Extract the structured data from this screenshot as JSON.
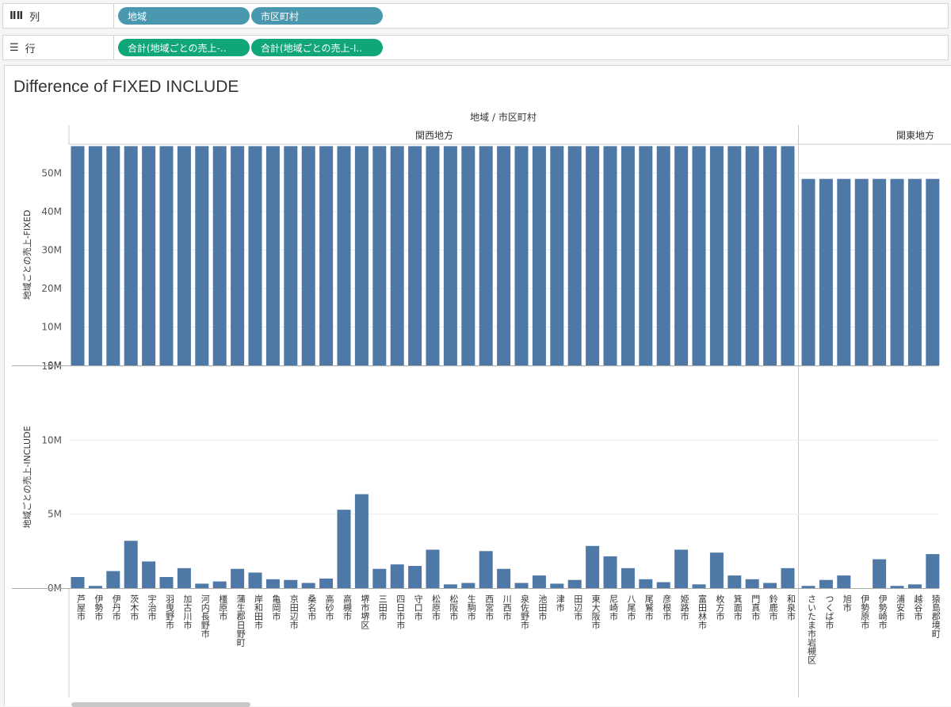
{
  "shelves": {
    "columns": {
      "label": "列",
      "icon": "columns-icon",
      "pills": [
        "地域",
        "市区町村"
      ]
    },
    "rows": {
      "label": "行",
      "icon": "rows-icon",
      "pills": [
        "合計(地域ごとの売上-..",
        "合計(地域ごとの売上-I.."
      ]
    }
  },
  "colors": {
    "bar": "#4e79a7",
    "dimension_pill": "#4a98b0",
    "measure_pill": "#11a679"
  },
  "chart_data": {
    "type": "bar",
    "title": "Difference of FIXED INCLUDE",
    "header_title": "地域 / 市区町村",
    "groups": [
      {
        "name": "関西地方",
        "categories": [
          "芦屋市",
          "伊勢市",
          "伊丹市",
          "茨木市",
          "宇治市",
          "羽曳野市",
          "加古川市",
          "河内長野市",
          "橿原市",
          "蒲生郡日野町",
          "岸和田市",
          "亀岡市",
          "京田辺市",
          "桑名市",
          "高砂市",
          "高槻市",
          "堺市堺区",
          "三田市",
          "四日市市",
          "守口市",
          "松原市",
          "松阪市",
          "生駒市",
          "西宮市",
          "川西市",
          "泉佐野市",
          "池田市",
          "津市",
          "田辺市",
          "東大阪市",
          "尼崎市",
          "八尾市",
          "尾鷲市",
          "彦根市",
          "姫路市",
          "富田林市",
          "枚方市",
          "箕面市",
          "門真市",
          "鈴鹿市",
          "和泉市"
        ],
        "fixed": [
          57,
          57,
          57,
          57,
          57,
          57,
          57,
          57,
          57,
          57,
          57,
          57,
          57,
          57,
          57,
          57,
          57,
          57,
          57,
          57,
          57,
          57,
          57,
          57,
          57,
          57,
          57,
          57,
          57,
          57,
          57,
          57,
          57,
          57,
          57,
          57,
          57,
          57,
          57,
          57,
          57
        ],
        "include": [
          0.75,
          0.15,
          1.15,
          3.2,
          1.8,
          0.75,
          1.35,
          0.3,
          0.45,
          1.3,
          1.05,
          0.6,
          0.55,
          0.35,
          0.65,
          5.3,
          6.35,
          1.3,
          1.6,
          1.5,
          2.6,
          0.25,
          0.35,
          2.5,
          1.3,
          0.35,
          0.85,
          0.3,
          0.55,
          2.85,
          2.15,
          1.35,
          0.6,
          0.4,
          2.6,
          0.25,
          2.4,
          0.85,
          0.6,
          0.35,
          1.35
        ]
      },
      {
        "name": "関東地方",
        "categories": [
          "さいたま市岩槻区",
          "つくば市",
          "旭市",
          "伊勢原市",
          "伊勢崎市",
          "浦安市",
          "越谷市",
          "猿島郡境町"
        ],
        "fixed": [
          48.5,
          48.5,
          48.5,
          48.5,
          48.5,
          48.5,
          48.5,
          48.5
        ],
        "include": [
          0.15,
          0.55,
          0.85,
          0,
          1.95,
          0.15,
          0.25,
          2.3
        ]
      }
    ],
    "panes": [
      {
        "ylabel": "地域ごとの売上-FIXED",
        "measure": "fixed",
        "ylim": [
          0,
          57.5
        ],
        "ticks": [
          0,
          10,
          20,
          30,
          40,
          50
        ],
        "tick_labels": [
          "0M",
          "10M",
          "20M",
          "30M",
          "40M",
          "50M"
        ]
      },
      {
        "ylabel": "地域ごとの売上-INCLUDE",
        "measure": "include",
        "ylim": [
          0,
          15
        ],
        "ticks": [
          0,
          5,
          10,
          15
        ],
        "tick_labels": [
          "0M",
          "5M",
          "10M",
          "15M"
        ]
      }
    ],
    "grid": true,
    "legend": "none",
    "units": "M"
  }
}
